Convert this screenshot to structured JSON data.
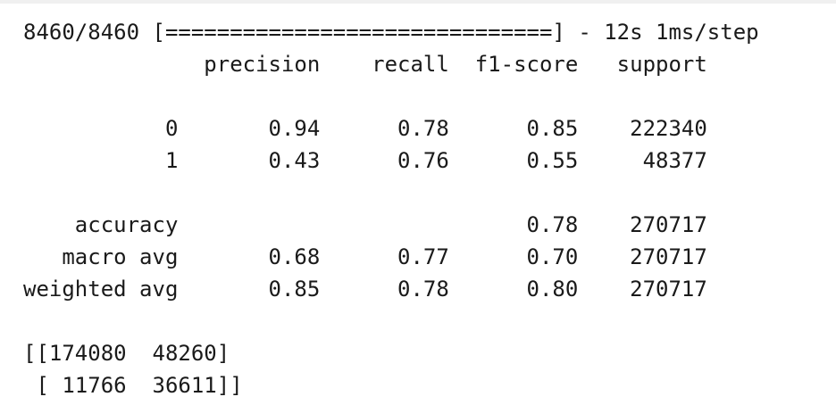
{
  "console": {
    "lines": [
      "8460/8460 [==============================] - 12s 1ms/step",
      "              precision    recall  f1-score   support",
      "",
      "           0       0.94      0.78      0.85    222340",
      "           1       0.43      0.76      0.55     48377",
      "",
      "    accuracy                           0.78    270717",
      "   macro avg       0.68      0.77      0.70    270717",
      "weighted avg       0.85      0.78      0.80    270717",
      "",
      "[[174080  48260]",
      " [ 11766  36611]]"
    ]
  }
}
